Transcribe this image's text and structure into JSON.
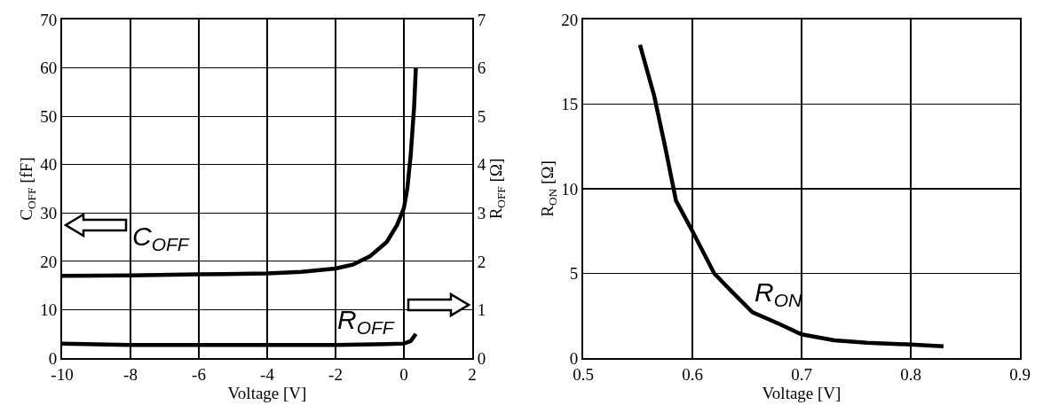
{
  "chart_data": [
    {
      "type": "line",
      "xlabel": "Voltage [V]",
      "ylabel": "C$_{OFF}$ [fF]",
      "y2label": "R$_{OFF}$ [Ω]",
      "xlim": [
        -10,
        2
      ],
      "xticks": [
        -10,
        -8,
        -6,
        -4,
        -2,
        0,
        2
      ],
      "ylim": [
        0,
        70
      ],
      "yticks": [
        0,
        10,
        20,
        30,
        40,
        50,
        60,
        70
      ],
      "y2lim": [
        0,
        7
      ],
      "y2ticks": [
        0,
        1,
        2,
        3,
        4,
        5,
        6,
        7
      ],
      "grid": true,
      "line_style": "solid",
      "series": [
        {
          "name": "C$_{OFF}$",
          "color": "#000000",
          "x": [
            -10,
            -8,
            -6,
            -4,
            -3,
            -2,
            -1.5,
            -1,
            -0.5,
            -0.2,
            0,
            0.1,
            0.2,
            0.3,
            0.35
          ],
          "values": [
            17,
            17.1,
            17.3,
            17.5,
            17.8,
            18.5,
            19.3,
            21,
            24,
            27.5,
            31,
            35,
            42,
            52,
            60
          ]
        },
        {
          "name": "R$_{OFF}$",
          "color": "#000000",
          "axis": "y2",
          "x": [
            -10,
            -8,
            -6,
            -4,
            -2,
            -0.5,
            0,
            0.2,
            0.35
          ],
          "values": [
            0.3,
            0.27,
            0.27,
            0.27,
            0.27,
            0.29,
            0.3,
            0.35,
            0.5
          ]
        }
      ]
    },
    {
      "type": "line",
      "xlabel": "Voltage [V]",
      "ylabel": "R$_{ON}$ [Ω]",
      "xlim": [
        0.5,
        0.9
      ],
      "xticks": [
        0.5,
        0.6,
        0.7,
        0.8,
        0.9
      ],
      "ylim": [
        0,
        20
      ],
      "yticks": [
        0,
        5,
        10,
        15,
        20
      ],
      "grid": true,
      "line_style": "solid",
      "series": [
        {
          "name": "R$_{ON}$",
          "color": "#000000",
          "x": [
            0.552,
            0.565,
            0.575,
            0.585,
            0.6,
            0.62,
            0.635,
            0.655,
            0.68,
            0.7,
            0.73,
            0.76,
            0.8,
            0.83
          ],
          "values": [
            18.5,
            15.5,
            12.5,
            9.3,
            7.5,
            5,
            4,
            2.7,
            2,
            1.4,
            1.05,
            0.9,
            0.8,
            0.7
          ]
        }
      ]
    }
  ]
}
